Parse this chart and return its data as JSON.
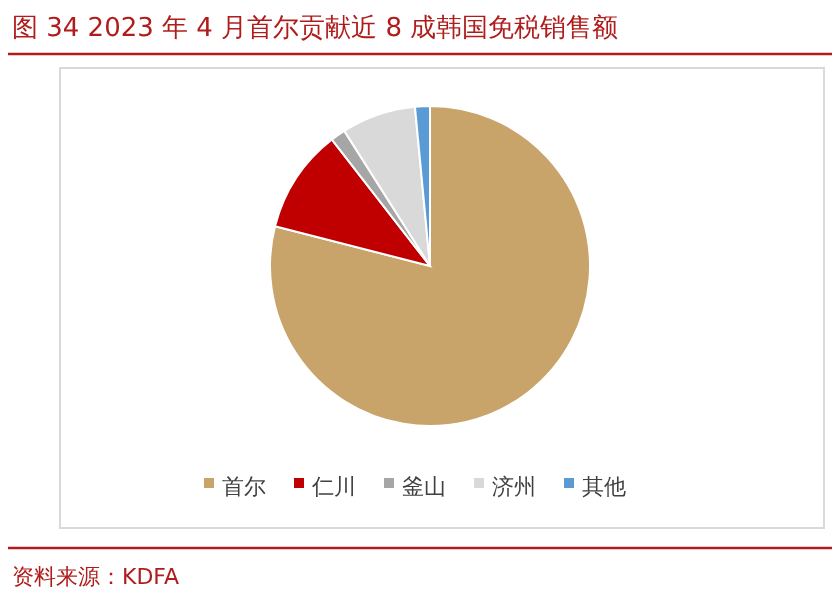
{
  "chart_data": {
    "type": "pie",
    "title": "图 34 2023 年 4 月首尔贡献近 8 成韩国免税销售额",
    "categories": [
      "首尔",
      "仁川",
      "釜山",
      "济州",
      "其他"
    ],
    "values": [
      79,
      10.5,
      1.5,
      7.5,
      1.5
    ],
    "colors": [
      "#c9a46a",
      "#c00000",
      "#a6a6a6",
      "#d9d9d9",
      "#5b9bd5"
    ],
    "legend": "bottom",
    "annotations": [
      "资料来源：KDFA"
    ]
  }
}
